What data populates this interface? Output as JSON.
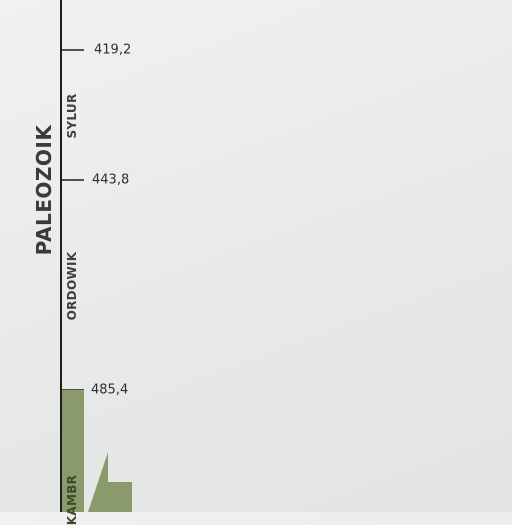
{
  "era": {
    "label": "PALEOZOIK"
  },
  "periods": [
    {
      "id": "sylur",
      "label": "SYLUR"
    },
    {
      "id": "ordowik",
      "label": "ORDOWIK"
    },
    {
      "id": "kambr",
      "label": "KAMBR"
    }
  ],
  "boundaries": [
    {
      "value_ma": 419.2,
      "label": "419,2"
    },
    {
      "value_ma": 443.8,
      "label": "443,8"
    },
    {
      "value_ma": 485.4,
      "label": "485,4"
    }
  ],
  "colors": {
    "axis": "#1f1f1f",
    "band": "#8a9a6b",
    "text": "#3a3a3a"
  }
}
